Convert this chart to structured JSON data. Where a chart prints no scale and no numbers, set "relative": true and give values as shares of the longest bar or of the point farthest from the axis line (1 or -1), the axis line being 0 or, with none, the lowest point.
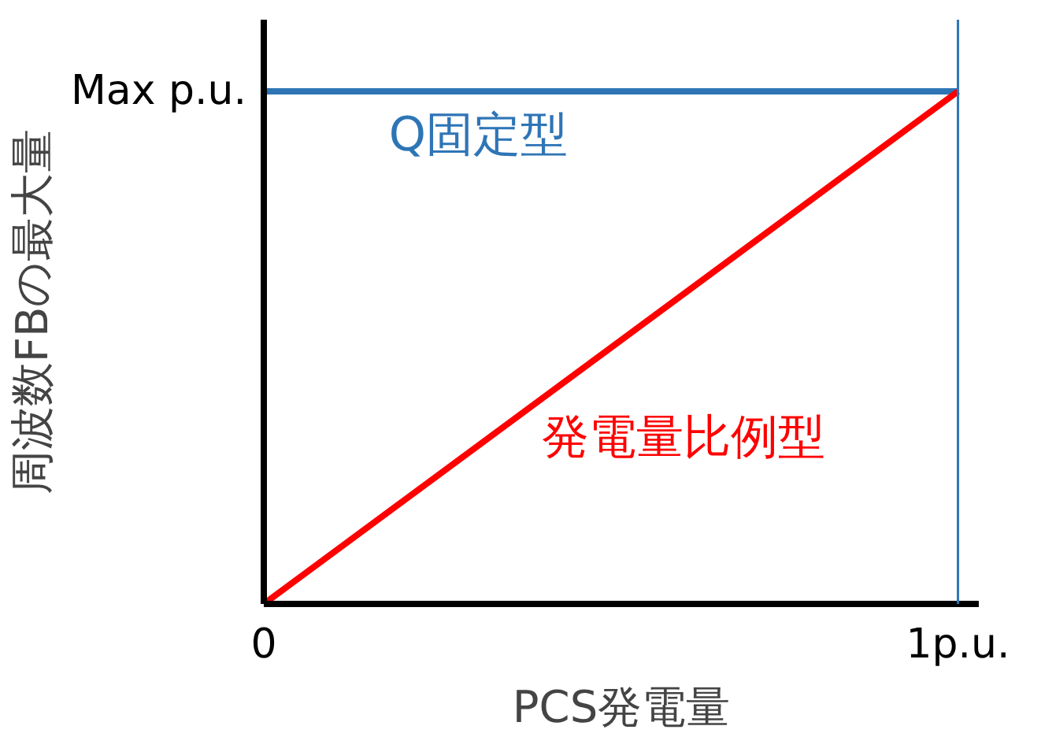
{
  "chart_data": {
    "type": "line",
    "xlabel": "PCS発電量",
    "ylabel": "周波数FBの最大量",
    "x": [
      0,
      1
    ],
    "series": [
      {
        "name": "Q固定型",
        "color": "#2e75b6",
        "values": [
          1,
          1
        ]
      },
      {
        "name": "発電量比例型",
        "color": "#ff0000",
        "values": [
          0,
          1
        ]
      }
    ],
    "xlim": [
      0,
      1.03
    ],
    "relative": true,
    "annotations": [
      "Max p.u."
    ],
    "xticks": [
      0,
      {
        "value": 1,
        "label": "1p.u."
      }
    ],
    "ref_lines": [
      {
        "axis": "x",
        "value": 1,
        "color": "#2e75b6"
      }
    ],
    "marker": "none",
    "line_style": "solid"
  }
}
